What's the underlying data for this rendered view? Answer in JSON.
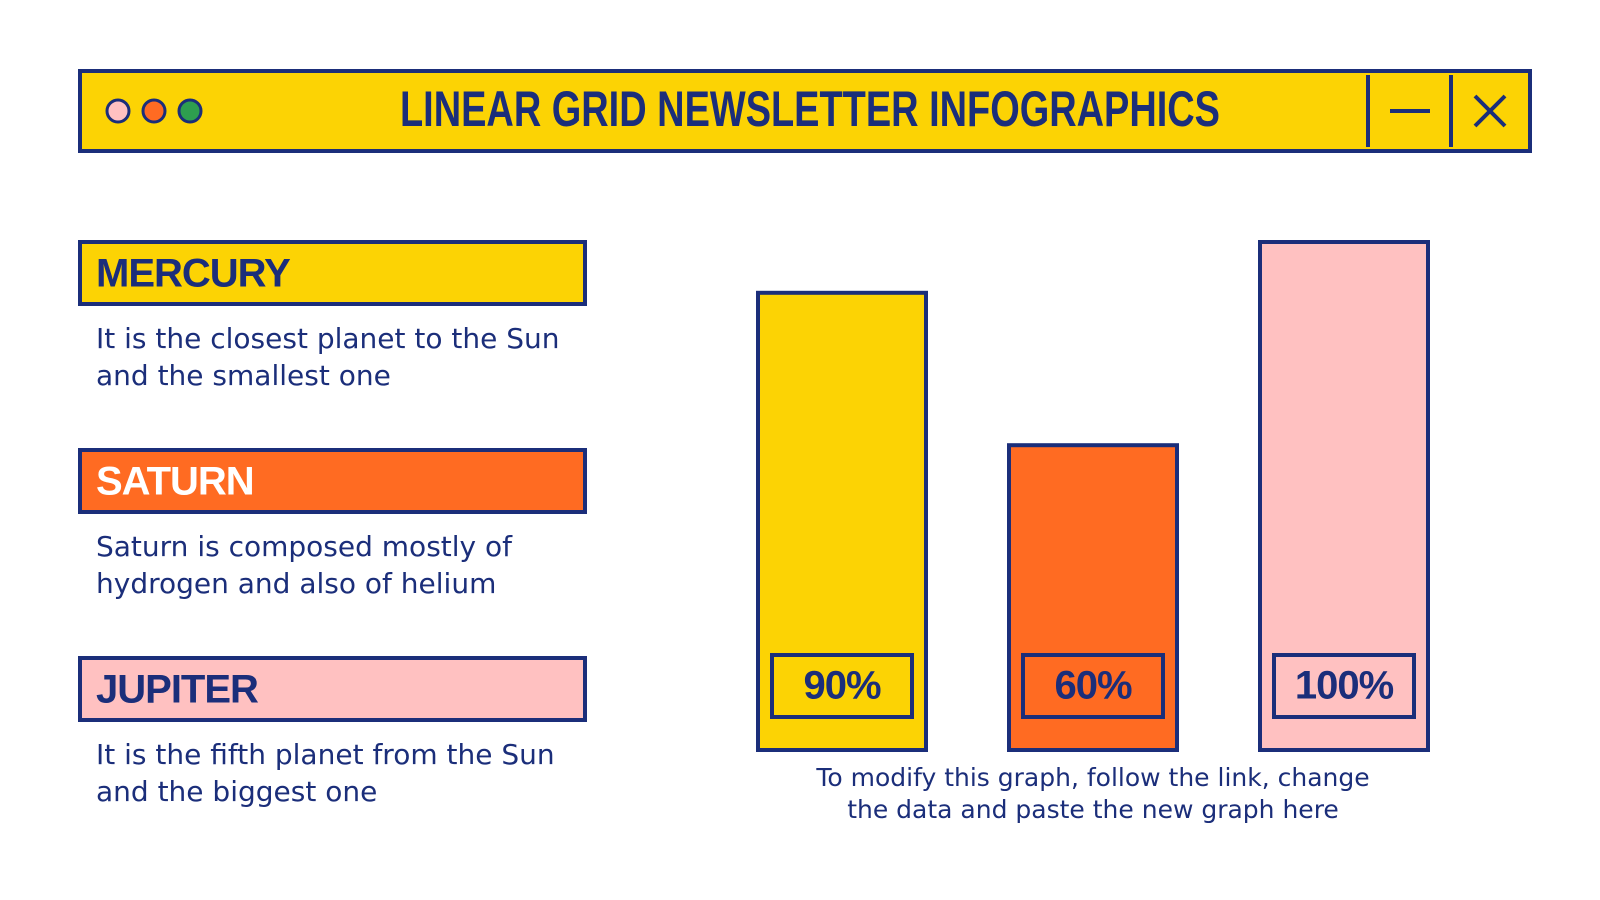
{
  "header": {
    "title": "LINEAR GRID NEWSLETTER INFOGRAPHICS"
  },
  "chart_data": {
    "type": "bar",
    "categories": [
      "MERCURY",
      "SATURN",
      "JUPITER"
    ],
    "descriptions": [
      "It is the closest planet to the Sun and the smallest one",
      "Saturn is composed mostly of hydrogen and also of helium",
      "It is the fifth planet from the Sun and the biggest one"
    ],
    "values": [
      90,
      60,
      100
    ],
    "value_labels": [
      "90%",
      "60%",
      "100%"
    ],
    "colors": [
      "#fcd304",
      "#ff6b22",
      "#ffc1c1"
    ],
    "ylim": [
      0,
      100
    ],
    "note": "To modify this graph, follow the link, change the data and paste the new graph here"
  }
}
